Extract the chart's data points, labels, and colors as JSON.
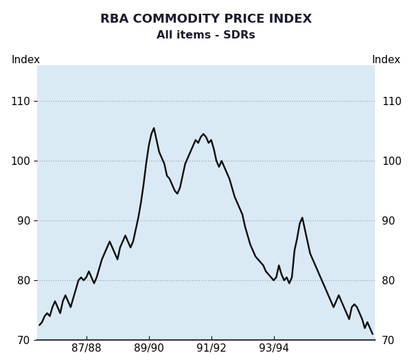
{
  "title": "RBA COMMODITY PRICE INDEX",
  "subtitle": "All items - SDRs",
  "ylabel_left": "Index",
  "ylabel_right": "Index",
  "ylim": [
    70,
    116
  ],
  "yticks": [
    70,
    80,
    90,
    100,
    110
  ],
  "background_color": "#daeaf5",
  "line_color": "#111111",
  "grid_color": "#777777",
  "xtick_labels": [
    "87/88",
    "89/90",
    "91/92",
    "93/94"
  ],
  "monthly_values": [
    72.5,
    73.0,
    74.0,
    74.5,
    74.0,
    75.5,
    76.5,
    75.5,
    74.5,
    76.5,
    77.5,
    76.5,
    75.5,
    77.0,
    78.5,
    80.0,
    80.5,
    80.0,
    80.5,
    81.5,
    80.5,
    79.5,
    80.5,
    82.0,
    83.5,
    84.5,
    85.5,
    86.5,
    85.5,
    84.5,
    83.5,
    85.5,
    86.5,
    87.5,
    86.5,
    85.5,
    86.5,
    88.5,
    90.5,
    93.0,
    96.0,
    99.5,
    102.5,
    104.5,
    105.5,
    103.5,
    101.5,
    100.5,
    99.5,
    97.5,
    97.0,
    96.0,
    95.0,
    94.5,
    95.5,
    97.5,
    99.5,
    100.5,
    101.5,
    102.5,
    103.5,
    103.0,
    104.0,
    104.5,
    104.0,
    103.0,
    103.5,
    102.0,
    100.0,
    99.0,
    100.0,
    99.0,
    98.0,
    97.0,
    95.5,
    94.0,
    93.0,
    92.0,
    91.0,
    89.0,
    87.5,
    86.0,
    85.0,
    84.0,
    83.5,
    83.0,
    82.5,
    81.5,
    81.0,
    80.5,
    80.0,
    80.5,
    82.5,
    81.0,
    80.0,
    80.5,
    79.5,
    80.5,
    85.0,
    87.0,
    89.5,
    90.5,
    88.5,
    86.5,
    84.5,
    83.5,
    82.5,
    81.5,
    80.5,
    79.5,
    78.5,
    77.5,
    76.5,
    75.5,
    76.5,
    77.5,
    76.5,
    75.5,
    74.5,
    73.5,
    75.5,
    76.0,
    75.5,
    74.5,
    73.5,
    72.0,
    73.0,
    72.0,
    71.0
  ]
}
